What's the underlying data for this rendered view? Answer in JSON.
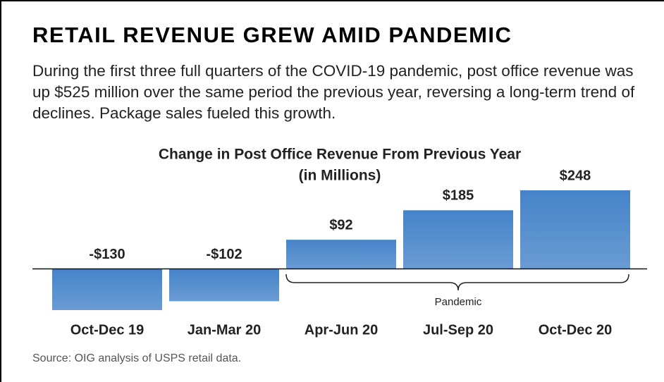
{
  "headline": "RETAIL REVENUE GREW AMID PANDEMIC",
  "intro": "During the first three full quarters of the COVID-19 pandemic, post office revenue was up $525 million over the same period the previous year, reversing a long-term trend of declines. Package sales fueled this growth.",
  "chart_data": {
    "type": "bar",
    "title": "Change in Post Office Revenue From Previous Year",
    "subtitle": "(in Millions)",
    "categories": [
      "Oct-Dec 19",
      "Jan-Mar 20",
      "Apr-Jun 20",
      "Jul-Sep 20",
      "Oct-Dec 20"
    ],
    "values": [
      -130,
      -102,
      92,
      185,
      248
    ],
    "value_labels": [
      "-$130",
      "-$102",
      "$92",
      "$185",
      "$248"
    ],
    "color": "#4583c9",
    "annotation": "Pandemic"
  },
  "source": "Source: OIG analysis of USPS retail data."
}
